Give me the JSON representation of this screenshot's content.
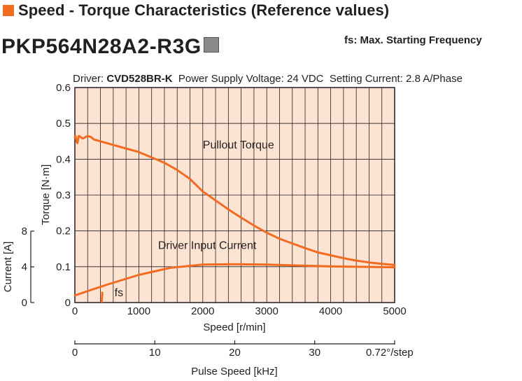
{
  "heading": "Speed - Torque Characteristics (Reference values)",
  "model": "PKP564N28A2-R3G",
  "fs_note": "fs: Max. Starting Frequency",
  "conditions": {
    "driver_prefix": "Driver: ",
    "driver": "CVD528BR-K",
    "rest": "  Power Supply Voltage: 24 VDC  Setting Current: 2.8 A/Phase"
  },
  "colors": {
    "curve": "#f26b21",
    "plot_bg": "#fde4d2",
    "grid": "#231f20"
  },
  "chart_data": {
    "type": "line",
    "xlabel": "Speed [r/min]",
    "ylabel": "Torque [N·m]",
    "y2label": "Current [A]",
    "x2label": "Pulse Speed [kHz]",
    "x2_suffix": "0.72°/step",
    "xlim": [
      0,
      5000
    ],
    "ylim": [
      0,
      0.6
    ],
    "y2lim": [
      0,
      8
    ],
    "x2lim": [
      0,
      40
    ],
    "x_ticks": [
      0,
      1000,
      2000,
      3000,
      4000,
      5000
    ],
    "y_ticks": [
      "0",
      "0.1",
      "0.2",
      "0.3",
      "0.4",
      "0.5",
      "0.6"
    ],
    "y2_ticks": [
      0,
      4,
      8
    ],
    "x2_ticks": [
      0,
      10,
      20,
      30
    ],
    "grid": true,
    "series": [
      {
        "name": "Pullout Torque",
        "axis": "torque",
        "x": [
          0,
          10,
          25,
          40,
          60,
          90,
          120,
          150,
          200,
          250,
          300,
          400,
          600,
          800,
          1000,
          1200,
          1400,
          1600,
          1800,
          2000,
          2200,
          2400,
          2600,
          2800,
          3000,
          3200,
          3400,
          3600,
          3800,
          4000,
          4200,
          4400,
          4600,
          4800,
          5000
        ],
        "y": [
          0.46,
          0.465,
          0.45,
          0.445,
          0.465,
          0.462,
          0.458,
          0.46,
          0.465,
          0.462,
          0.455,
          0.45,
          0.44,
          0.43,
          0.42,
          0.405,
          0.39,
          0.37,
          0.345,
          0.31,
          0.285,
          0.26,
          0.237,
          0.215,
          0.195,
          0.178,
          0.165,
          0.152,
          0.14,
          0.132,
          0.124,
          0.117,
          0.112,
          0.108,
          0.105
        ]
      },
      {
        "name": "Driver Input Current",
        "axis": "current",
        "x": [
          0,
          500,
          1000,
          1500,
          2000,
          2500,
          3000,
          3500,
          4000,
          4500,
          5000
        ],
        "y": [
          0.8,
          2.0,
          3.1,
          3.9,
          4.25,
          4.3,
          4.25,
          4.15,
          4.05,
          4.0,
          3.95
        ]
      }
    ],
    "annotations": [
      {
        "text": "Pullout Torque",
        "x": 2000,
        "y": 0.43
      },
      {
        "text": "Driver Input Current",
        "x": 1300,
        "y": 0.15
      },
      {
        "text": "fs",
        "x": 620,
        "y": 0.018
      }
    ],
    "fs_marker": {
      "x": 430,
      "y_from": 0.03,
      "y_to": 0.0
    }
  }
}
